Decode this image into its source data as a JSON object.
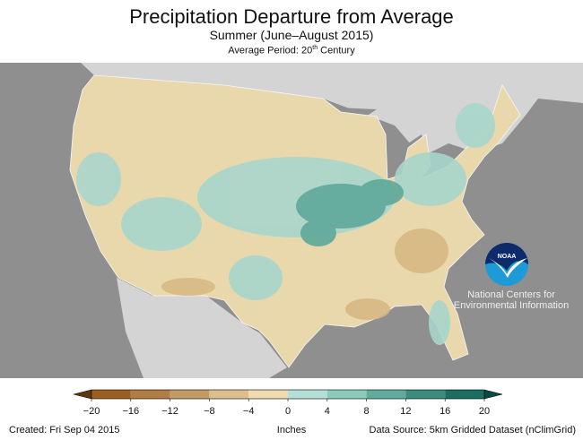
{
  "header": {
    "title": "Precipitation Departure from Average",
    "subtitle": "Summer (June–August 2015)",
    "average_period_prefix": "Average Period: 20",
    "average_period_sup": "th",
    "average_period_suffix": " Century"
  },
  "legend": {
    "unit_label": "Inches",
    "ticks": [
      "−20",
      "−16",
      "−12",
      "−8",
      "−4",
      "0",
      "4",
      "8",
      "12",
      "16",
      "20"
    ],
    "colors": [
      "#9c5e1e",
      "#b07d45",
      "#c49b66",
      "#dcbf8c",
      "#f0dcb0",
      "#b4e0d8",
      "#8cc9bd",
      "#62aa9e",
      "#3c8c7e",
      "#1a6e62"
    ],
    "low_arrow_color": "#5c3a10",
    "high_arrow_color": "#0c4a40"
  },
  "logo": {
    "text": "NOAA",
    "org_name": "National Centers for Environmental Information"
  },
  "footer": {
    "created": "Created: Fri Sep 04 2015",
    "source": "Data Source: 5km Gridded Dataset (nClimGrid)"
  }
}
